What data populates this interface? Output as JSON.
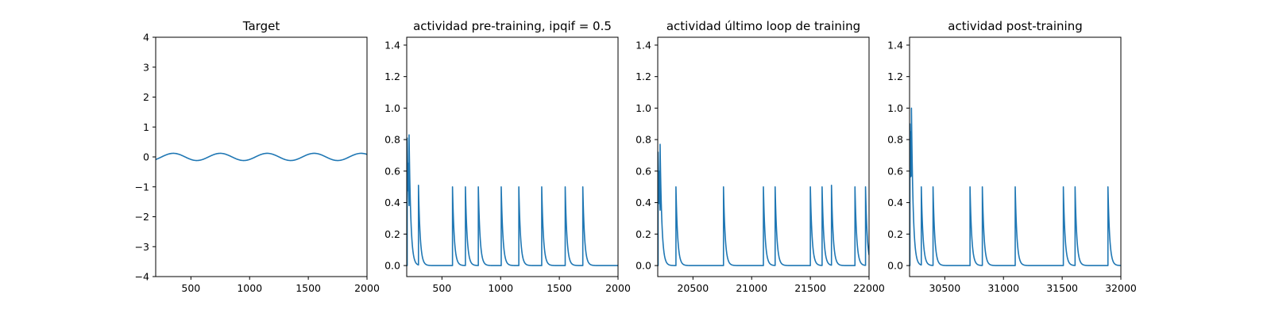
{
  "chart_data": [
    {
      "type": "line",
      "title": "Target",
      "xlim": [
        200,
        2000
      ],
      "ylim": [
        -4,
        4
      ],
      "xticks": [
        500,
        1000,
        1500,
        2000
      ],
      "yticks": [
        -4,
        -3,
        -2,
        -1,
        0,
        1,
        2,
        3,
        4
      ],
      "series": [
        {
          "color": "#1f77b4",
          "kind": "sine",
          "x_start": 200,
          "x_end": 2000,
          "amplitude": 0.12,
          "period": 400,
          "first_peak_x": 350,
          "x": [
            200,
            250,
            300,
            350,
            400,
            450,
            500,
            550,
            600,
            650,
            700,
            750,
            800,
            850,
            900,
            950,
            1000,
            1050,
            1100,
            1150,
            1200,
            1250,
            1300,
            1350,
            1400,
            1450,
            1500,
            1550,
            1600,
            1650,
            1700,
            1750,
            1800,
            1850,
            1900,
            1950,
            2000
          ],
          "y": [
            -0.08,
            0.0,
            0.08,
            0.12,
            0.08,
            0.0,
            -0.08,
            -0.12,
            -0.08,
            0.0,
            0.08,
            0.12,
            0.08,
            0.0,
            -0.08,
            -0.12,
            -0.08,
            0.0,
            0.08,
            0.12,
            0.08,
            0.0,
            -0.08,
            -0.12,
            -0.08,
            0.0,
            0.08,
            0.12,
            0.08,
            0.0,
            -0.08,
            -0.12,
            -0.08,
            0.0,
            0.08,
            0.12,
            0.08
          ]
        }
      ]
    },
    {
      "type": "line",
      "title": "actividad pre-training, ipqif = 0.5",
      "xlim": [
        200,
        2000
      ],
      "ylim": [
        -0.07,
        1.45
      ],
      "xticks": [
        500,
        1000,
        1500,
        2000
      ],
      "yticks": [
        0.0,
        0.2,
        0.4,
        0.6,
        0.8,
        1.0,
        1.2,
        1.4
      ],
      "series": [
        {
          "color": "#1f77b4",
          "kind": "spikes",
          "x_start": 200,
          "x_end": 2000,
          "decay_tau": 15,
          "spikes": [
            {
              "x": 204,
              "y": 0.81
            },
            {
              "x": 212,
              "y": 0.65
            },
            {
              "x": 220,
              "y": 0.83
            },
            {
              "x": 300,
              "y": 0.51
            },
            {
              "x": 590,
              "y": 0.5
            },
            {
              "x": 700,
              "y": 0.5
            },
            {
              "x": 810,
              "y": 0.5
            },
            {
              "x": 1005,
              "y": 0.5
            },
            {
              "x": 1155,
              "y": 0.5
            },
            {
              "x": 1350,
              "y": 0.5
            },
            {
              "x": 1550,
              "y": 0.5
            },
            {
              "x": 1700,
              "y": 0.5
            }
          ]
        }
      ]
    },
    {
      "type": "line",
      "title": "actividad último loop de training",
      "xlim": [
        20200,
        22000
      ],
      "ylim": [
        -0.07,
        1.45
      ],
      "xticks": [
        20500,
        21000,
        21500,
        22000
      ],
      "yticks": [
        0.0,
        0.2,
        0.4,
        0.6,
        0.8,
        1.0,
        1.2,
        1.4
      ],
      "series": [
        {
          "color": "#1f77b4",
          "kind": "spikes",
          "x_start": 20200,
          "x_end": 22000,
          "decay_tau": 15,
          "spikes": [
            {
              "x": 20203,
              "y": 0.72
            },
            {
              "x": 20212,
              "y": 0.6
            },
            {
              "x": 20220,
              "y": 0.77
            },
            {
              "x": 20355,
              "y": 0.5
            },
            {
              "x": 20760,
              "y": 0.5
            },
            {
              "x": 21100,
              "y": 0.5
            },
            {
              "x": 21200,
              "y": 0.5
            },
            {
              "x": 21500,
              "y": 0.5
            },
            {
              "x": 21600,
              "y": 0.5
            },
            {
              "x": 21680,
              "y": 0.51
            },
            {
              "x": 21880,
              "y": 0.5
            },
            {
              "x": 21970,
              "y": 0.5
            }
          ]
        }
      ]
    },
    {
      "type": "line",
      "title": "actividad post-training",
      "xlim": [
        30200,
        32000
      ],
      "ylim": [
        -0.07,
        1.45
      ],
      "xticks": [
        30500,
        31000,
        31500,
        32000
      ],
      "yticks": [
        0.0,
        0.2,
        0.4,
        0.6,
        0.8,
        1.0,
        1.2,
        1.4
      ],
      "series": [
        {
          "color": "#1f77b4",
          "kind": "spikes",
          "x_start": 30200,
          "x_end": 32000,
          "decay_tau": 15,
          "spikes": [
            {
              "x": 30203,
              "y": 0.9
            },
            {
              "x": 30210,
              "y": 0.85
            },
            {
              "x": 30216,
              "y": 1.0
            },
            {
              "x": 30300,
              "y": 0.5
            },
            {
              "x": 30400,
              "y": 0.5
            },
            {
              "x": 30715,
              "y": 0.5
            },
            {
              "x": 30820,
              "y": 0.5
            },
            {
              "x": 31100,
              "y": 0.5
            },
            {
              "x": 31510,
              "y": 0.5
            },
            {
              "x": 31610,
              "y": 0.5
            },
            {
              "x": 31890,
              "y": 0.5
            }
          ]
        }
      ]
    }
  ]
}
